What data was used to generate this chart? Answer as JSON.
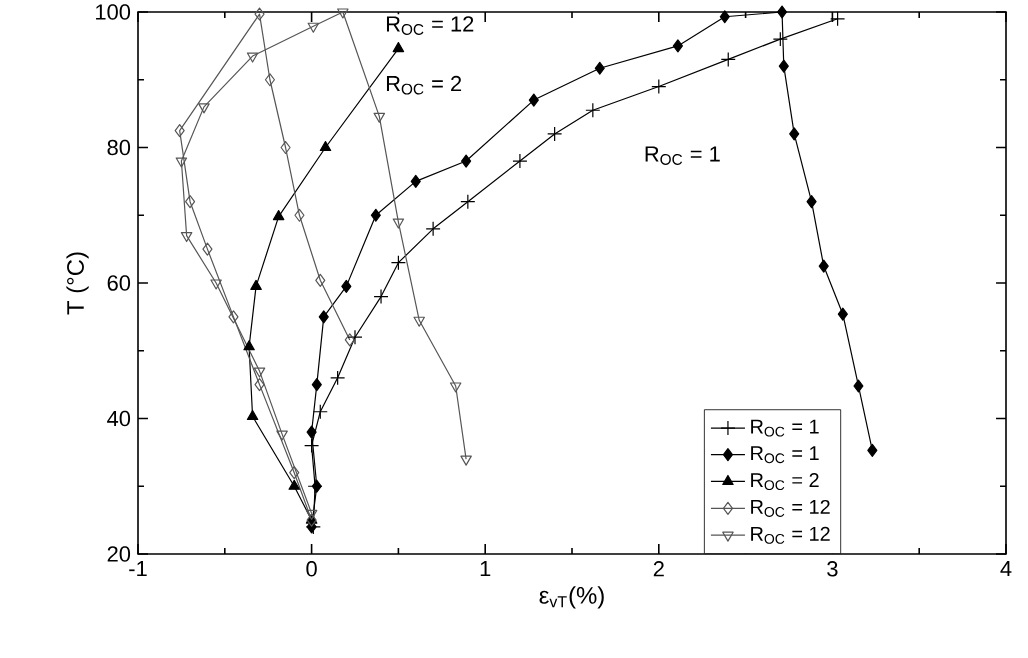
{
  "chart_data": {
    "type": "line",
    "xlabel": "ε$_{vT}$(%)",
    "ylabel": "T (°C)",
    "xlim": [
      -1,
      4
    ],
    "xticks": [
      -1,
      0,
      1,
      2,
      3,
      4
    ],
    "ylim": [
      20,
      100
    ],
    "yticks": [
      20,
      40,
      60,
      80,
      100
    ],
    "grid": false,
    "legend": "bottom right",
    "series": [
      {
        "name": "R$_{OC}$ = 1",
        "color": "#000000",
        "marker": "cross",
        "x": [
          0.01,
          0.02,
          0.0,
          0.05,
          0.15,
          0.25,
          0.4,
          0.5,
          0.7,
          0.9,
          1.2,
          1.4,
          1.62,
          2.0,
          2.4,
          2.7,
          3.03
        ],
        "values": [
          24,
          30,
          36,
          41,
          46,
          52,
          58,
          63,
          68,
          72,
          78,
          82,
          85.5,
          89,
          93,
          96,
          99
        ]
      },
      {
        "name": "R$_{OC}$ = 1",
        "color": "#000000",
        "marker": "diamond",
        "x": [
          0.0,
          0.03,
          0.0,
          0.03,
          0.07,
          0.2,
          0.37,
          0.6,
          0.89,
          1.28,
          1.66,
          2.11,
          2.38,
          2.71,
          2.72,
          2.78,
          2.88,
          2.95,
          3.06,
          3.15,
          3.23
        ],
        "values": [
          24,
          30,
          38,
          45,
          55,
          59.5,
          70,
          75,
          78,
          87,
          91.7,
          95,
          99.3,
          100,
          92,
          82,
          72,
          62.5,
          55.4,
          44.8,
          35.3
        ]
      },
      {
        "name": "R$_{OC}$ = 2",
        "color": "#000000",
        "marker": "triangle",
        "x": [
          0.0,
          -0.1,
          -0.34,
          -0.36,
          -0.32,
          -0.19,
          0.08,
          0.5
        ],
        "values": [
          25,
          30,
          40.3,
          50.6,
          59.5,
          69.8,
          80,
          94.6
        ]
      },
      {
        "name": "R$_{OC}$ = 12",
        "color": "#555555",
        "marker": "diamond-open",
        "x": [
          0.0,
          -0.1,
          -0.3,
          -0.45,
          -0.6,
          -0.7,
          -0.76,
          -0.3,
          -0.24,
          -0.15,
          -0.07,
          0.05,
          0.22
        ],
        "values": [
          25,
          32,
          45,
          55,
          65,
          72,
          82.5,
          99.7,
          90,
          80,
          70,
          60.4,
          51.6
        ]
      },
      {
        "name": "R$_{OC}$ = 12",
        "color": "#555555",
        "marker": "triangle-down-open",
        "x": [
          0.0,
          -0.17,
          -0.3,
          -0.55,
          -0.72,
          -0.75,
          -0.62,
          -0.34,
          0.01,
          0.18,
          0.39,
          0.5,
          0.62,
          0.83,
          0.89
        ],
        "values": [
          26,
          37.7,
          47,
          60,
          67,
          78,
          86,
          93.5,
          97.9,
          100,
          84.6,
          69,
          54.5,
          44.8,
          34
        ]
      }
    ],
    "annotations": [
      "R$_{OC}$ = 12",
      "R$_{OC}$ = 2",
      "R$_{OC}$ = 1"
    ]
  }
}
